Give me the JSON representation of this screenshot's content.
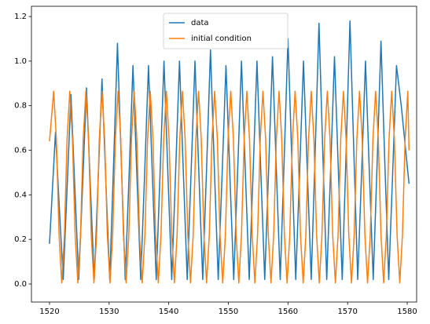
{
  "chart_data": {
    "type": "line",
    "xlim": [
      1516.97,
      1581.58
    ],
    "ylim": [
      -0.081,
      1.246
    ],
    "xticks": [
      1520,
      1530,
      1540,
      1550,
      1560,
      1570,
      1580
    ],
    "yticks": [
      {
        "value": 0,
        "label": "0.0"
      },
      0.2,
      0.4,
      0.6,
      0.8,
      {
        "value": 1,
        "label": "1.0"
      },
      1.2
    ],
    "legend": "upper center",
    "series": [
      {
        "name": "data",
        "color": "#1f77b4",
        "x": [
          1520.0,
          1521.0,
          1521.65,
          1522.3,
          1522.95,
          1523.6,
          1524.25,
          1524.9,
          1525.55,
          1526.2,
          1526.85,
          1527.5,
          1528.15,
          1528.8,
          1529.45,
          1530.1,
          1530.75,
          1531.4,
          1532.05,
          1532.7,
          1533.35,
          1534.0,
          1534.65,
          1535.3,
          1535.95,
          1536.6,
          1537.25,
          1537.9,
          1538.55,
          1539.2,
          1539.85,
          1540.5,
          1541.15,
          1541.8,
          1542.45,
          1543.1,
          1543.75,
          1544.4,
          1545.05,
          1545.7,
          1546.35,
          1547.0,
          1547.65,
          1548.3,
          1548.95,
          1549.6,
          1550.25,
          1550.9,
          1551.55,
          1552.2,
          1552.85,
          1553.5,
          1554.15,
          1554.8,
          1555.45,
          1556.1,
          1556.75,
          1557.4,
          1558.05,
          1558.7,
          1559.35,
          1560.0,
          1560.65,
          1561.3,
          1561.95,
          1562.6,
          1563.25,
          1563.9,
          1564.55,
          1565.2,
          1565.85,
          1566.5,
          1567.15,
          1567.8,
          1568.45,
          1569.1,
          1569.75,
          1570.4,
          1571.05,
          1571.7,
          1572.35,
          1573.0,
          1573.65,
          1574.3,
          1574.95,
          1575.6,
          1576.25,
          1576.9,
          1577.55,
          1578.2,
          1579.0,
          1580.3
        ],
        "values": [
          0.18,
          0.68,
          0.34,
          0.02,
          0.43,
          0.85,
          0.43,
          0.02,
          0.44,
          0.88,
          0.44,
          0.02,
          0.46,
          0.92,
          0.46,
          0.02,
          0.54,
          1.08,
          0.54,
          0.02,
          0.49,
          0.98,
          0.49,
          0.02,
          0.49,
          0.98,
          0.49,
          0.02,
          0.5,
          1.0,
          0.5,
          0.02,
          0.5,
          1.0,
          0.5,
          0.02,
          0.5,
          1.0,
          0.5,
          0.02,
          0.52,
          1.05,
          0.52,
          0.02,
          0.49,
          0.98,
          0.49,
          0.02,
          0.5,
          1.0,
          0.5,
          0.02,
          0.5,
          1.0,
          0.5,
          0.02,
          0.51,
          1.02,
          0.51,
          0.02,
          0.55,
          1.1,
          0.55,
          0.02,
          0.5,
          1.0,
          0.5,
          0.02,
          0.58,
          1.17,
          0.58,
          0.02,
          0.51,
          1.02,
          0.51,
          0.02,
          0.59,
          1.18,
          0.59,
          0.02,
          0.5,
          1.0,
          0.5,
          0.02,
          0.54,
          1.09,
          0.54,
          0.02,
          0.49,
          0.98,
          0.8,
          0.45
        ]
      },
      {
        "name": "initial condition",
        "color": "#ff7f0e",
        "x": [
          1520.0,
          1520.7,
          1521.15,
          1521.6,
          1522.05,
          1522.5,
          1522.95,
          1523.4,
          1523.85,
          1524.3,
          1524.75,
          1525.2,
          1525.65,
          1526.1,
          1526.55,
          1527.0,
          1527.45,
          1527.9,
          1528.35,
          1528.8,
          1529.25,
          1529.7,
          1530.15,
          1530.6,
          1531.05,
          1531.5,
          1531.95,
          1532.4,
          1532.85,
          1533.3,
          1533.75,
          1534.2,
          1534.65,
          1535.1,
          1535.55,
          1536.0,
          1536.45,
          1536.9,
          1537.35,
          1537.8,
          1538.25,
          1538.7,
          1539.15,
          1539.6,
          1540.05,
          1540.5,
          1540.95,
          1541.4,
          1541.85,
          1542.3,
          1542.75,
          1543.2,
          1543.65,
          1544.1,
          1544.55,
          1545.0,
          1545.45,
          1545.9,
          1546.35,
          1546.8,
          1547.25,
          1547.7,
          1548.15,
          1548.6,
          1549.05,
          1549.5,
          1549.95,
          1550.4,
          1550.85,
          1551.3,
          1551.75,
          1552.2,
          1552.65,
          1553.1,
          1553.55,
          1554.0,
          1554.45,
          1554.9,
          1555.35,
          1555.8,
          1556.25,
          1556.7,
          1557.15,
          1557.6,
          1558.05,
          1558.5,
          1558.95,
          1559.4,
          1559.85,
          1560.3,
          1560.75,
          1561.2,
          1561.65,
          1562.1,
          1562.55,
          1563.0,
          1563.45,
          1563.9,
          1564.35,
          1564.8,
          1565.25,
          1565.7,
          1566.15,
          1566.6,
          1567.05,
          1567.5,
          1567.95,
          1568.4,
          1568.85,
          1569.3,
          1569.75,
          1570.2,
          1570.65,
          1571.1,
          1571.55,
          1572.0,
          1572.45,
          1572.9,
          1573.35,
          1573.8,
          1574.25,
          1574.7,
          1575.15,
          1575.6,
          1576.05,
          1576.5,
          1576.95,
          1577.4,
          1577.85,
          1578.3,
          1578.75,
          1579.2,
          1579.65,
          1580.1,
          1580.3
        ],
        "values": [
          0.64,
          0.865,
          0.65,
          0.22,
          0.005,
          0.22,
          0.65,
          0.865,
          0.65,
          0.22,
          0.005,
          0.22,
          0.65,
          0.865,
          0.65,
          0.22,
          0.005,
          0.22,
          0.65,
          0.865,
          0.65,
          0.22,
          0.005,
          0.22,
          0.65,
          0.865,
          0.65,
          0.22,
          0.005,
          0.22,
          0.65,
          0.865,
          0.65,
          0.22,
          0.005,
          0.22,
          0.65,
          0.865,
          0.65,
          0.22,
          0.005,
          0.22,
          0.65,
          0.865,
          0.65,
          0.22,
          0.005,
          0.22,
          0.65,
          0.865,
          0.65,
          0.22,
          0.005,
          0.22,
          0.65,
          0.865,
          0.65,
          0.22,
          0.005,
          0.22,
          0.65,
          0.865,
          0.65,
          0.22,
          0.005,
          0.22,
          0.65,
          0.865,
          0.65,
          0.22,
          0.005,
          0.22,
          0.65,
          0.865,
          0.65,
          0.22,
          0.005,
          0.22,
          0.65,
          0.865,
          0.65,
          0.22,
          0.005,
          0.22,
          0.65,
          0.865,
          0.65,
          0.22,
          0.005,
          0.22,
          0.65,
          0.865,
          0.65,
          0.22,
          0.005,
          0.22,
          0.65,
          0.865,
          0.65,
          0.22,
          0.005,
          0.22,
          0.65,
          0.865,
          0.65,
          0.22,
          0.005,
          0.22,
          0.65,
          0.865,
          0.65,
          0.22,
          0.005,
          0.22,
          0.65,
          0.865,
          0.65,
          0.22,
          0.005,
          0.22,
          0.65,
          0.865,
          0.65,
          0.22,
          0.005,
          0.22,
          0.65,
          0.865,
          0.65,
          0.22,
          0.005,
          0.22,
          0.65,
          0.865,
          0.6
        ]
      }
    ]
  }
}
